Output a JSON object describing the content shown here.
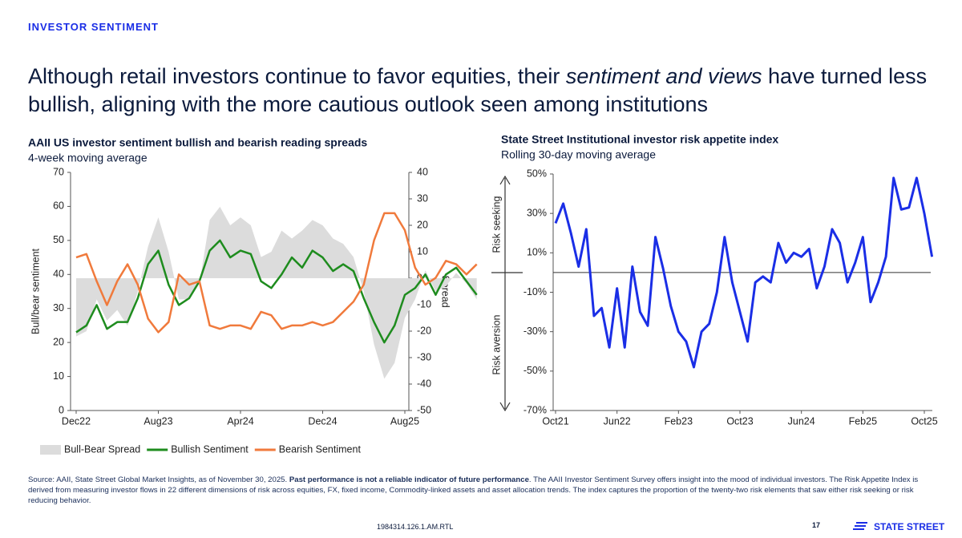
{
  "header": {
    "section": "INVESTOR SENTIMENT",
    "title_parts": [
      "Although retail investors continue to favor equities, their ",
      "sentiment and views",
      " have turned less bullish, aligning with the more cautious outlook seen among institutions"
    ]
  },
  "chart_data": [
    {
      "type": "line",
      "title": "AAII US investor sentiment bullish and bearish reading spreads",
      "subtitle": "4-week moving average",
      "ylabel": "Bull/bear sentiment",
      "y2label": "Spread",
      "categories": [
        "Dec22",
        null,
        null,
        null,
        null,
        null,
        null,
        null,
        "Aug23",
        null,
        null,
        null,
        null,
        null,
        null,
        null,
        "Apr24",
        null,
        null,
        null,
        null,
        null,
        null,
        null,
        "Dec24",
        null,
        null,
        null,
        null,
        null,
        null,
        null,
        "Aug25",
        null,
        null,
        null,
        null,
        null,
        null,
        null
      ],
      "ylim": [
        0,
        70
      ],
      "yticks": [
        0,
        10,
        20,
        30,
        40,
        50,
        60,
        70
      ],
      "y2lim": [
        -50,
        40
      ],
      "y2ticks": [
        -50,
        -40,
        -30,
        -20,
        -10,
        0,
        10,
        20,
        30,
        40
      ],
      "legend": "bottom",
      "series": [
        {
          "name": "Bull-Bear Spread",
          "color": "#dcdcdc",
          "style": "area",
          "axis": "y2",
          "values": [
            -22,
            -20,
            -8,
            -16,
            -12,
            -18,
            -5,
            12,
            23,
            10,
            -8,
            -8,
            -2,
            22,
            27,
            20,
            23,
            20,
            8,
            10,
            18,
            15,
            18,
            22,
            20,
            15,
            13,
            8,
            -5,
            -25,
            -38,
            -32,
            -15,
            -8,
            3,
            -5,
            -3,
            2,
            -2,
            -8
          ]
        },
        {
          "name": "Bullish Sentiment",
          "color": "#1e8c1e",
          "style": "line",
          "values": [
            23,
            25,
            31,
            24,
            26,
            26,
            33,
            43,
            47,
            37,
            31,
            33,
            38,
            47,
            50,
            45,
            47,
            46,
            38,
            36,
            40,
            45,
            42,
            47,
            45,
            41,
            43,
            41,
            33,
            26,
            20,
            25,
            34,
            36,
            40,
            34,
            40,
            42,
            38,
            34
          ]
        },
        {
          "name": "Bearish Sentiment",
          "color": "#f07a3c",
          "style": "line",
          "values": [
            45,
            46,
            38,
            31,
            38,
            43,
            37,
            27,
            23,
            26,
            40,
            37,
            38,
            25,
            24,
            25,
            25,
            24,
            29,
            28,
            24,
            25,
            25,
            26,
            25,
            26,
            29,
            32,
            37,
            50,
            58,
            58,
            53,
            42,
            37,
            39,
            44,
            43,
            40,
            43
          ]
        }
      ]
    },
    {
      "type": "line",
      "title": "State Street Institutional investor risk appetite index",
      "subtitle": "Rolling 30-day moving average",
      "side_labels": [
        "Risk seeking",
        "Risk aversion"
      ],
      "categories": [
        "Oct21",
        null,
        null,
        null,
        null,
        null,
        null,
        null,
        "Jun22",
        null,
        null,
        null,
        null,
        null,
        null,
        null,
        "Feb23",
        null,
        null,
        null,
        null,
        null,
        null,
        null,
        "Oct23",
        null,
        null,
        null,
        null,
        null,
        null,
        null,
        "Jun24",
        null,
        null,
        null,
        null,
        null,
        null,
        null,
        "Feb25",
        null,
        null,
        null,
        null,
        null,
        null,
        null,
        "Oct25",
        null
      ],
      "ylim": [
        -70,
        50
      ],
      "yticks": [
        {
          "value": -70,
          "label": "-70%"
        },
        {
          "value": -50,
          "label": "-50%"
        },
        {
          "value": -30,
          "label": "-30%"
        },
        {
          "value": -10,
          "label": "-10%"
        },
        {
          "value": 10,
          "label": "10%"
        },
        {
          "value": 30,
          "label": "30%"
        },
        {
          "value": 50,
          "label": "50%"
        }
      ],
      "series": [
        {
          "name": "Risk appetite index",
          "color": "#1a2ee6",
          "style": "line",
          "values": [
            25,
            35,
            20,
            3,
            22,
            -22,
            -18,
            -38,
            -8,
            -38,
            3,
            -20,
            -27,
            18,
            2,
            -17,
            -30,
            -35,
            -48,
            -30,
            -26,
            -10,
            18,
            -5,
            -20,
            -35,
            -5,
            -2,
            -5,
            15,
            5,
            10,
            8,
            12,
            -8,
            3,
            22,
            15,
            -5,
            5,
            18,
            -15,
            -5,
            8,
            48,
            32,
            33,
            48,
            30,
            8
          ]
        }
      ]
    }
  ],
  "footer": {
    "source_prefix": "Source: AAII, State Street Global Market Insights, as of November 30, 2025. ",
    "source_bold": "Past performance is not a reliable indicator of future performance",
    "source_rest": ". The AAII Investor Sentiment Survey offers insight into the mood of individual investors. The Risk Appetite Index is derived from measuring investor flows in 22 different dimensions of risk across equities, FX, fixed income, Commodity-linked assets and asset allocation trends. The index captures the proportion of the twenty-two risk elements that saw either risk seeking or risk reducing behavior.",
    "code": "1984314.126.1.AM.RTL",
    "page": "17",
    "logo": "STATE STREET"
  }
}
